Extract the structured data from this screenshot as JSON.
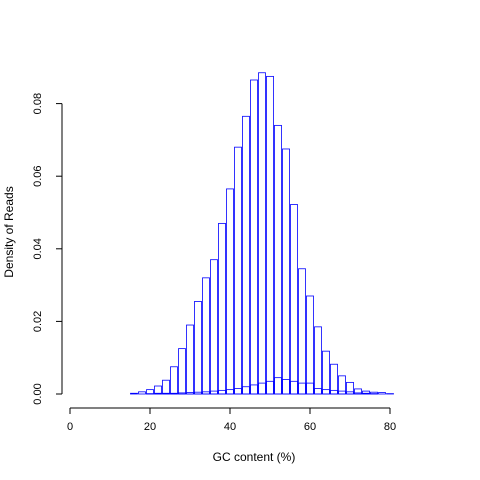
{
  "chart_data": {
    "type": "bar",
    "title": "",
    "xlabel": "GC content (%)",
    "ylabel": "Density of Reads",
    "xlim": [
      0,
      92
    ],
    "ylim": [
      0,
      0.09
    ],
    "x_ticks": [
      "0",
      "20",
      "40",
      "60",
      "80"
    ],
    "y_ticks": [
      "0.00",
      "0.02",
      "0.04",
      "0.06",
      "0.08"
    ],
    "bar_color": "#0000ff",
    "grid": false,
    "legend": "none",
    "series": [
      {
        "x": [
          2,
          4,
          6,
          8,
          10,
          12,
          14,
          16,
          18,
          20,
          22,
          24,
          26,
          28,
          30,
          32,
          34,
          36,
          38,
          40,
          42,
          44,
          46,
          48,
          50,
          52,
          54,
          56,
          58,
          60,
          62,
          64,
          66,
          68,
          70,
          72,
          74,
          76,
          78,
          80,
          82,
          84,
          86,
          88,
          90
        ],
        "values": [
          0,
          0,
          0,
          0,
          0,
          0,
          0,
          0.0002,
          0.0006,
          0.0012,
          0.0022,
          0.0038,
          0.0075,
          0.0125,
          0.019,
          0.0255,
          0.032,
          0.037,
          0.047,
          0.0565,
          0.068,
          0.0765,
          0.0865,
          0.0885,
          0.0875,
          0.074,
          0.0675,
          0.0522,
          0.0345,
          0.027,
          0.0185,
          0.0118,
          0.0082,
          0.005,
          0.0032,
          0.0014,
          0.0008,
          0.0005,
          0.0004,
          0.0001,
          0,
          0,
          0,
          0,
          0
        ]
      },
      {
        "x": [
          2,
          4,
          6,
          8,
          10,
          12,
          14,
          16,
          18,
          20,
          22,
          24,
          26,
          28,
          30,
          32,
          34,
          36,
          38,
          40,
          42,
          44,
          46,
          48,
          50,
          52,
          54,
          56,
          58,
          60,
          62,
          64,
          66,
          68,
          70,
          72,
          74,
          76,
          78,
          80,
          82,
          84,
          86,
          88,
          90
        ],
        "values": [
          0,
          0,
          0,
          0,
          0,
          0,
          0,
          0,
          0,
          0.0001,
          0.0002,
          0.0002,
          0.0002,
          0.0003,
          0.0004,
          0.0005,
          0.0006,
          0.0008,
          0.001,
          0.0012,
          0.0015,
          0.002,
          0.0025,
          0.003,
          0.0035,
          0.0045,
          0.004,
          0.0035,
          0.003,
          0.003,
          0.0015,
          0.0012,
          0.001,
          0.0008,
          0.0006,
          0.0003,
          0.0002,
          0.0001,
          0,
          0,
          0,
          0,
          0,
          0,
          0
        ]
      }
    ]
  }
}
